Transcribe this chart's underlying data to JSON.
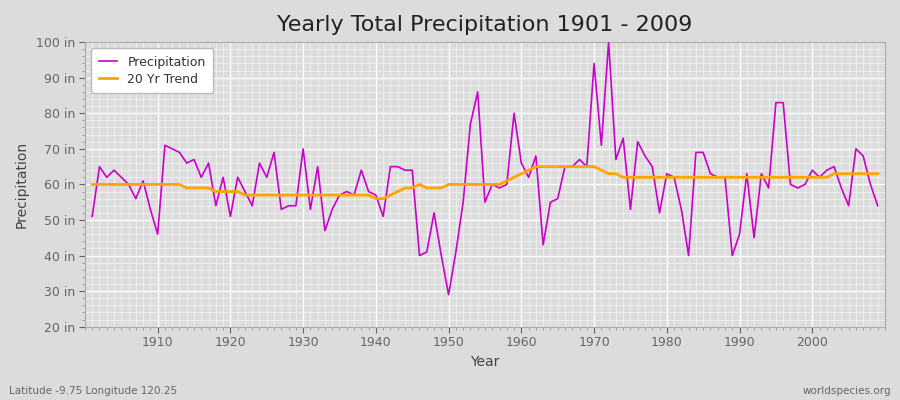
{
  "title": "Yearly Total Precipitation 1901 - 2009",
  "xlabel": "Year",
  "ylabel": "Precipitation",
  "lat_lon_label": "Latitude -9.75 Longitude 120.25",
  "source_label": "worldspecies.org",
  "years": [
    1901,
    1902,
    1903,
    1904,
    1905,
    1906,
    1907,
    1908,
    1909,
    1910,
    1911,
    1912,
    1913,
    1914,
    1915,
    1916,
    1917,
    1918,
    1919,
    1920,
    1921,
    1922,
    1923,
    1924,
    1925,
    1926,
    1927,
    1928,
    1929,
    1930,
    1931,
    1932,
    1933,
    1934,
    1935,
    1936,
    1937,
    1938,
    1939,
    1940,
    1941,
    1942,
    1943,
    1944,
    1945,
    1946,
    1947,
    1948,
    1949,
    1950,
    1951,
    1952,
    1953,
    1954,
    1955,
    1956,
    1957,
    1958,
    1959,
    1960,
    1961,
    1962,
    1963,
    1964,
    1965,
    1966,
    1967,
    1968,
    1969,
    1970,
    1971,
    1972,
    1973,
    1974,
    1975,
    1976,
    1977,
    1978,
    1979,
    1980,
    1981,
    1982,
    1983,
    1984,
    1985,
    1986,
    1987,
    1988,
    1989,
    1990,
    1991,
    1992,
    1993,
    1994,
    1995,
    1996,
    1997,
    1998,
    1999,
    2000,
    2001,
    2002,
    2003,
    2004,
    2005,
    2006,
    2007,
    2008,
    2009
  ],
  "precip": [
    51,
    65,
    62,
    64,
    62,
    60,
    56,
    61,
    53,
    46,
    71,
    70,
    69,
    66,
    67,
    62,
    66,
    54,
    62,
    51,
    62,
    58,
    54,
    66,
    62,
    69,
    53,
    54,
    54,
    70,
    53,
    65,
    47,
    53,
    57,
    58,
    57,
    64,
    58,
    57,
    51,
    65,
    65,
    64,
    64,
    40,
    41,
    52,
    40,
    29,
    41,
    55,
    77,
    86,
    55,
    60,
    59,
    60,
    80,
    66,
    62,
    68,
    43,
    55,
    56,
    65,
    65,
    67,
    65,
    94,
    71,
    100,
    67,
    73,
    53,
    72,
    68,
    65,
    52,
    63,
    62,
    53,
    40,
    69,
    69,
    63,
    62,
    62,
    40,
    46,
    63,
    45,
    63,
    59,
    83,
    83,
    60,
    59,
    60,
    64,
    62,
    64,
    65,
    59,
    54,
    70,
    68,
    60,
    54
  ],
  "trend": [
    60,
    60,
    60,
    60,
    60,
    60,
    60,
    60,
    60,
    60,
    60,
    60,
    60,
    59,
    59,
    59,
    59,
    58,
    58,
    58,
    58,
    57,
    57,
    57,
    57,
    57,
    57,
    57,
    57,
    57,
    57,
    57,
    57,
    57,
    57,
    57,
    57,
    57,
    57,
    56,
    56,
    57,
    58,
    59,
    59,
    60,
    59,
    59,
    59,
    60,
    60,
    60,
    60,
    60,
    60,
    60,
    60,
    61,
    62,
    63,
    64,
    65,
    65,
    65,
    65,
    65,
    65,
    65,
    65,
    65,
    64,
    63,
    63,
    62,
    62,
    62,
    62,
    62,
    62,
    62,
    62,
    62,
    62,
    62,
    62,
    62,
    62,
    62,
    62,
    62,
    62,
    62,
    62,
    62,
    62,
    62,
    62,
    62,
    62,
    62,
    62,
    62,
    63,
    63,
    63,
    63,
    63,
    63,
    63
  ],
  "precip_color": "#CC00CC",
  "trend_color": "#FFA500",
  "bg_color": "#DCDCDC",
  "plot_bg_color": "#DCDCDC",
  "ylim": [
    20,
    100
  ],
  "yticks": [
    20,
    30,
    40,
    50,
    60,
    70,
    80,
    90,
    100
  ],
  "ytick_labels": [
    "20 in",
    "30 in",
    "40 in",
    "50 in",
    "60 in",
    "70 in",
    "80 in",
    "90 in",
    "100 in"
  ],
  "xticks": [
    1910,
    1920,
    1930,
    1940,
    1950,
    1960,
    1970,
    1980,
    1990,
    2000
  ],
  "title_fontsize": 16,
  "axis_label_fontsize": 10,
  "tick_fontsize": 9,
  "legend_fontsize": 9,
  "legend_label_precip": "Precipitation",
  "legend_label_trend": "20 Yr Trend"
}
